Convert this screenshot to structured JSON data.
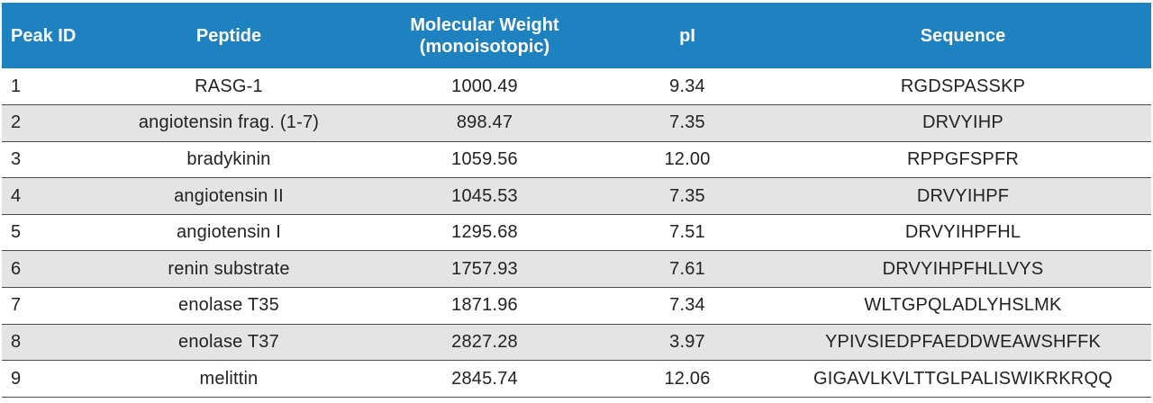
{
  "table": {
    "headers": {
      "peak_id": "Peak ID",
      "peptide": "Peptide",
      "mw_line1": "Molecular Weight",
      "mw_line2": "(monoisotopic)",
      "pi": "pI",
      "sequence": "Sequence"
    },
    "rows": [
      {
        "peak_id": "1",
        "peptide": "RASG-1",
        "mw": "1000.49",
        "pi": "9.34",
        "sequence": "RGDSPASSKP"
      },
      {
        "peak_id": "2",
        "peptide": "angiotensin frag. (1-7)",
        "mw": "898.47",
        "pi": "7.35",
        "sequence": "DRVYIHP"
      },
      {
        "peak_id": "3",
        "peptide": "bradykinin",
        "mw": "1059.56",
        "pi": "12.00",
        "sequence": "RPPGFSPFR"
      },
      {
        "peak_id": "4",
        "peptide": "angiotensin II",
        "mw": "1045.53",
        "pi": "7.35",
        "sequence": "DRVYIHPF"
      },
      {
        "peak_id": "5",
        "peptide": "angiotensin I",
        "mw": "1295.68",
        "pi": "7.51",
        "sequence": "DRVYIHPFHL"
      },
      {
        "peak_id": "6",
        "peptide": "renin substrate",
        "mw": "1757.93",
        "pi": "7.61",
        "sequence": "DRVYIHPFHLLVYS"
      },
      {
        "peak_id": "7",
        "peptide": "enolase T35",
        "mw": "1871.96",
        "pi": "7.34",
        "sequence": "WLTGPQLADLYHSLMK"
      },
      {
        "peak_id": "8",
        "peptide": "enolase T37",
        "mw": "2827.28",
        "pi": "3.97",
        "sequence": "YPIVSIEDPFAEDDWEAWSHFFK"
      },
      {
        "peak_id": "9",
        "peptide": "melittin",
        "mw": "2845.74",
        "pi": "12.06",
        "sequence": "GIGAVLKVLTTGLPALISWIKRKRQQ"
      }
    ]
  },
  "colors": {
    "header_background": "#1f82c0",
    "header_text": "#ffffff",
    "alt_row_background": "#e4e4e4",
    "row_divider": "#4a4a4a"
  }
}
